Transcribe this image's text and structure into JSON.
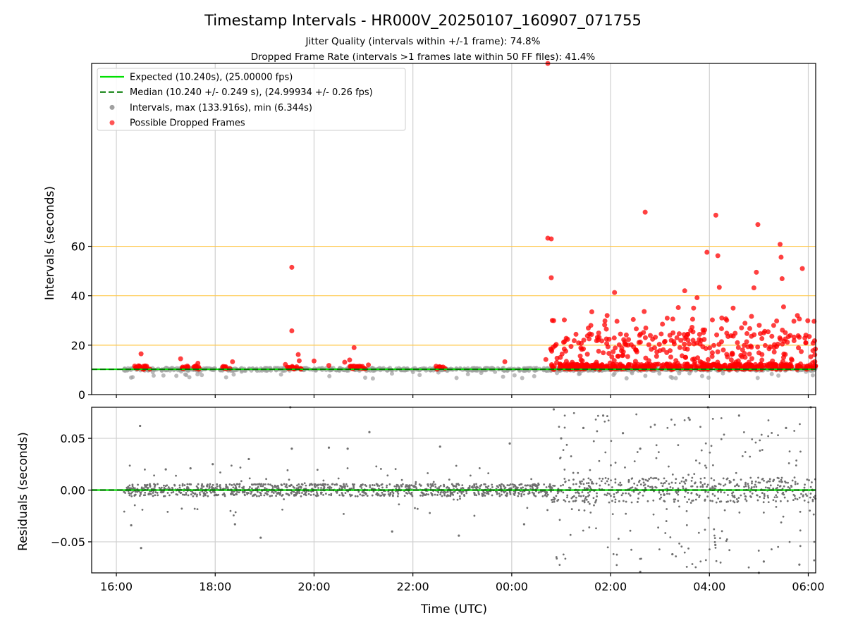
{
  "chart_data": [
    {
      "type": "scatter",
      "title": "Timestamp Intervals - HR000V_20250107_160907_071755",
      "subtitle_lines": [
        "Jitter Quality (intervals within +/-1 frame): 74.8%",
        "Dropped Frame Rate (intervals >1 frames late within 50 FF files): 41.4%"
      ],
      "ylabel": "Intervals (seconds)",
      "ylim": [
        0,
        134
      ],
      "yticks": [
        0,
        20,
        40,
        60
      ],
      "ytick_labels": [
        "0",
        "20",
        "40",
        "60"
      ],
      "xlim_hours": [
        15.5,
        30.15
      ],
      "reference_lines": [
        20,
        40,
        60
      ],
      "reference_line_color": "#ffc84a",
      "expected_value": 10.24,
      "median_value": 10.24,
      "expected_color": "#00e000",
      "median_color": "#007a00",
      "interval_color": "#808080",
      "dropped_color": "#ff0000",
      "legend": {
        "location": "upper-left",
        "entries": [
          {
            "label": "Expected (10.240s), (25.00000 fps)",
            "style": "solid-line",
            "color": "#00e000"
          },
          {
            "label": "Median (10.240 +/- 0.249 s), (24.99934 +/- 0.26 fps)",
            "style": "dashed-line",
            "color": "#007a00"
          },
          {
            "label": "Intervals, max (133.916s), min (6.344s)",
            "style": "marker",
            "color": "#a0a0a0"
          },
          {
            "label": "Possible Dropped Frames",
            "style": "marker",
            "color": "#ff5555"
          }
        ]
      },
      "series": [
        {
          "name": "Possible Dropped Frames",
          "color": "#ff0000",
          "points": [
            {
              "x": 16.5,
              "y": 16.5
            },
            {
              "x": 17.3,
              "y": 14.5
            },
            {
              "x": 17.65,
              "y": 12.7
            },
            {
              "x": 18.35,
              "y": 13.3
            },
            {
              "x": 19.42,
              "y": 12.2
            },
            {
              "x": 19.55,
              "y": 51.5
            },
            {
              "x": 19.55,
              "y": 25.8
            },
            {
              "x": 19.68,
              "y": 16.2
            },
            {
              "x": 19.7,
              "y": 13.7
            },
            {
              "x": 20.0,
              "y": 13.6
            },
            {
              "x": 20.3,
              "y": 11.8
            },
            {
              "x": 20.62,
              "y": 13.1
            },
            {
              "x": 20.72,
              "y": 14.0
            },
            {
              "x": 20.81,
              "y": 19.0
            },
            {
              "x": 21.1,
              "y": 12.0
            },
            {
              "x": 23.86,
              "y": 13.3
            },
            {
              "x": 24.69,
              "y": 14.2
            },
            {
              "x": 24.73,
              "y": 134.0
            },
            {
              "x": 24.73,
              "y": 63.3
            },
            {
              "x": 24.8,
              "y": 63.0
            },
            {
              "x": 24.8,
              "y": 47.3
            },
            {
              "x": 24.82,
              "y": 30.0
            },
            {
              "x": 24.9,
              "y": 20.3
            },
            {
              "x": 25.05,
              "y": 21.2
            },
            {
              "x": 25.2,
              "y": 19.5
            },
            {
              "x": 25.3,
              "y": 24.4
            },
            {
              "x": 25.45,
              "y": 18.5
            },
            {
              "x": 25.55,
              "y": 26.9
            },
            {
              "x": 25.62,
              "y": 33.5
            },
            {
              "x": 25.75,
              "y": 22.1
            },
            {
              "x": 25.88,
              "y": 28.2
            },
            {
              "x": 25.93,
              "y": 32.0
            },
            {
              "x": 26.08,
              "y": 41.3
            },
            {
              "x": 26.2,
              "y": 24.5
            },
            {
              "x": 26.35,
              "y": 20.0
            },
            {
              "x": 26.52,
              "y": 26.6
            },
            {
              "x": 26.7,
              "y": 73.8
            },
            {
              "x": 26.68,
              "y": 33.6
            },
            {
              "x": 26.85,
              "y": 22.4
            },
            {
              "x": 27.05,
              "y": 28.5
            },
            {
              "x": 27.2,
              "y": 24.0
            },
            {
              "x": 27.37,
              "y": 35.2
            },
            {
              "x": 27.5,
              "y": 42.0
            },
            {
              "x": 27.66,
              "y": 30.5
            },
            {
              "x": 27.68,
              "y": 35.0
            },
            {
              "x": 27.75,
              "y": 39.2
            },
            {
              "x": 27.88,
              "y": 25.1
            },
            {
              "x": 27.95,
              "y": 57.6
            },
            {
              "x": 28.17,
              "y": 56.2
            },
            {
              "x": 28.2,
              "y": 43.4
            },
            {
              "x": 28.25,
              "y": 31.0
            },
            {
              "x": 28.35,
              "y": 30.1
            },
            {
              "x": 28.48,
              "y": 35.0
            },
            {
              "x": 28.52,
              "y": 24.8
            },
            {
              "x": 28.65,
              "y": 27.0
            },
            {
              "x": 28.85,
              "y": 23.6
            },
            {
              "x": 28.9,
              "y": 43.2
            },
            {
              "x": 28.95,
              "y": 49.5
            },
            {
              "x": 28.98,
              "y": 68.8
            },
            {
              "x": 29.12,
              "y": 25.6
            },
            {
              "x": 29.3,
              "y": 28.0
            },
            {
              "x": 29.36,
              "y": 29.8
            },
            {
              "x": 29.43,
              "y": 60.8
            },
            {
              "x": 29.45,
              "y": 55.6
            },
            {
              "x": 29.47,
              "y": 46.9
            },
            {
              "x": 29.5,
              "y": 35.5
            },
            {
              "x": 29.6,
              "y": 23.5
            },
            {
              "x": 29.78,
              "y": 32.0
            },
            {
              "x": 29.82,
              "y": 30.6
            },
            {
              "x": 29.88,
              "y": 51.0
            },
            {
              "x": 29.95,
              "y": 20.9
            },
            {
              "x": 30.05,
              "y": 15.3
            },
            {
              "x": 28.13,
              "y": 72.6
            },
            {
              "x": 30.02,
              "y": 23.5
            }
          ]
        }
      ]
    },
    {
      "type": "scatter",
      "xlabel": "Time (UTC)",
      "ylabel": "Residuals (seconds)",
      "ylim": [
        -0.08,
        0.08
      ],
      "yticks": [
        -0.05,
        0.0,
        0.05
      ],
      "ytick_labels": [
        "−0.05",
        "0.00",
        "0.05"
      ],
      "xticks_hours": [
        16,
        18,
        20,
        22,
        24,
        26,
        28,
        30
      ],
      "xtick_labels": [
        "16:00",
        "18:00",
        "20:00",
        "22:00",
        "00:00",
        "02:00",
        "04:00",
        "06:00"
      ],
      "xlim_hours": [
        15.5,
        30.15
      ],
      "zero_line_color": "#00e000",
      "series": [
        {
          "name": "Residuals",
          "color": "#707070",
          "points": [
            {
              "x": 16.48,
              "y": 0.062
            },
            {
              "x": 16.3,
              "y": -0.034
            },
            {
              "x": 16.5,
              "y": -0.056
            },
            {
              "x": 17.0,
              "y": 0.02
            },
            {
              "x": 17.5,
              "y": 0.021
            },
            {
              "x": 17.95,
              "y": 0.025
            },
            {
              "x": 18.4,
              "y": -0.033
            },
            {
              "x": 18.68,
              "y": 0.03
            },
            {
              "x": 18.92,
              "y": -0.046
            },
            {
              "x": 19.55,
              "y": 0.04
            },
            {
              "x": 19.52,
              "y": 0.08
            },
            {
              "x": 20.3,
              "y": 0.041
            },
            {
              "x": 20.68,
              "y": 0.04
            },
            {
              "x": 21.12,
              "y": 0.056
            },
            {
              "x": 21.58,
              "y": -0.04
            },
            {
              "x": 22.55,
              "y": 0.042
            },
            {
              "x": 22.93,
              "y": -0.044
            },
            {
              "x": 23.96,
              "y": 0.045
            },
            {
              "x": 24.25,
              "y": -0.033
            },
            {
              "x": 24.85,
              "y": 0.078
            },
            {
              "x": 25.0,
              "y": 0.05
            },
            {
              "x": 25.45,
              "y": 0.06
            },
            {
              "x": 25.85,
              "y": 0.072
            },
            {
              "x": 26.25,
              "y": 0.055
            },
            {
              "x": 26.6,
              "y": -0.079
            },
            {
              "x": 26.6,
              "y": 0.04
            },
            {
              "x": 27.25,
              "y": -0.062
            },
            {
              "x": 27.6,
              "y": 0.068
            },
            {
              "x": 27.97,
              "y": 0.08
            },
            {
              "x": 28.12,
              "y": -0.053
            },
            {
              "x": 28.6,
              "y": 0.072
            },
            {
              "x": 29.0,
              "y": -0.08
            },
            {
              "x": 29.1,
              "y": -0.069
            },
            {
              "x": 29.55,
              "y": 0.06
            },
            {
              "x": 29.82,
              "y": -0.072
            },
            {
              "x": 30.05,
              "y": 0.08
            }
          ]
        }
      ]
    }
  ]
}
